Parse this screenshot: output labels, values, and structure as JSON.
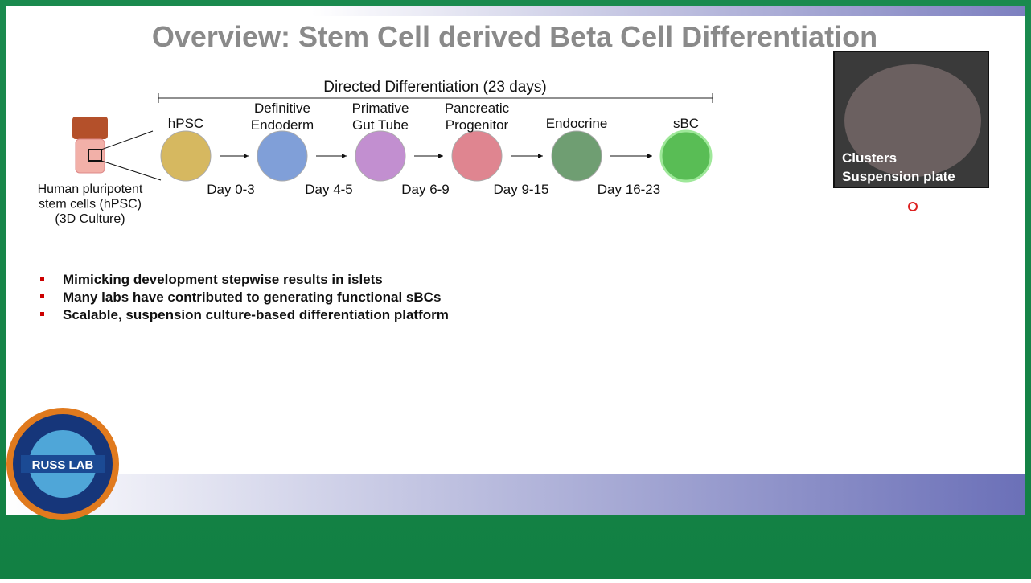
{
  "slide": {
    "title": "Overview: Stem Cell derived Beta Cell Differentiation",
    "timeline_label": "Directed Differentiation (23 days)",
    "source": [
      "Human pluripotent",
      "stem cells (hPSC)",
      "(3D Culture)"
    ],
    "stages": [
      {
        "label": [
          "hPSC"
        ],
        "color": "#d6b860"
      },
      {
        "label": [
          "Definitive",
          "Endoderm"
        ],
        "color": "#809fd8"
      },
      {
        "label": [
          "Primative",
          "Gut Tube"
        ],
        "color": "#c28fd0"
      },
      {
        "label": [
          "Pancreatic",
          "Progenitor"
        ],
        "color": "#df8590"
      },
      {
        "label": [
          "Endocrine"
        ],
        "color": "#6f9e72"
      },
      {
        "label": [
          "sBC"
        ],
        "color": "#59bd55"
      }
    ],
    "days": [
      "Day 0-3",
      "Day 4-5",
      "Day 6-9",
      "Day 9-15",
      "Day 16-23"
    ],
    "bullets": [
      "Mimicking development stepwise results in islets",
      "Many labs have contributed to generating functional sBCs",
      "Scalable, suspension culture-based differentiation platform"
    ],
    "photo_caption": [
      "Clusters",
      "Suspension plate"
    ],
    "logo": "RUSS LAB"
  }
}
